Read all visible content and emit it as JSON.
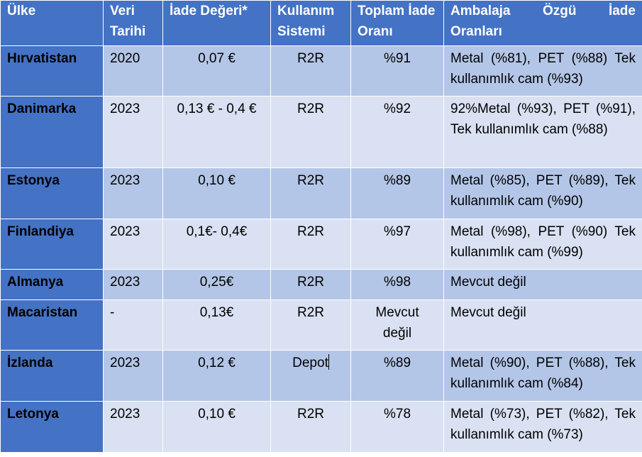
{
  "colors": {
    "header_bg": "#4472c4",
    "row_dark": "#b4c6e7",
    "row_light": "#d9e1f2"
  },
  "table": {
    "headers": {
      "country": "Ülke",
      "year": "Veri Tarihi",
      "deposit": "İade Değeri*",
      "system": "Kullanım Sistemi",
      "total": "Toplam İade Oranı",
      "packaging_words": [
        "Ambalaja",
        "Özgü",
        "İade"
      ],
      "packaging_line2": "Oranları"
    },
    "rows": [
      {
        "country": "Hırvatistan",
        "year": "2020",
        "deposit": "0,07 €",
        "system": "R2R",
        "total": "%91",
        "packaging": "Metal (%81), PET (%88) Tek kullanımlık cam (%93)"
      },
      {
        "country": "Danimarka",
        "year": "2023",
        "deposit": "0,13 € - 0,4 €",
        "system": "R2R",
        "total": "%92",
        "packaging": "92%Metal (%93), PET (%91), Tek kullanımlık cam (%88)"
      },
      {
        "country": "Estonya",
        "year": "2023",
        "deposit": "0,10 €",
        "system": "R2R",
        "total": "%89",
        "packaging": "Metal (%85), PET (%89), Tek kullanımlık cam (%90)"
      },
      {
        "country": "Finlandiya",
        "year": "2023",
        "deposit": "0,1€- 0,4€",
        "system": "R2R",
        "total": "%97",
        "packaging": "Metal (%98), PET (%90) Tek kullanımlık cam (%99)"
      },
      {
        "country": "Almanya",
        "year": "2023",
        "deposit": "0,25€",
        "system": "R2R",
        "total": "%98",
        "packaging": "Mevcut değil"
      },
      {
        "country": "Macaristan",
        "year": "-",
        "deposit": "0,13€",
        "system": "R2R",
        "total": "Mevcut değil",
        "packaging": "Mevcut değil"
      },
      {
        "country": "İzlanda",
        "year": "2023",
        "deposit": "0,12 €",
        "system": "Depot",
        "total": "%89",
        "packaging": "Metal (%90), PET (%88), Tek kullanımlık cam (%84)"
      },
      {
        "country": "Letonya",
        "year": "2023",
        "deposit": "0,10 €",
        "system": "R2R",
        "total": "%78",
        "packaging": "Metal (%73), PET (%82), Tek kullanımlık cam (%73)"
      }
    ]
  }
}
